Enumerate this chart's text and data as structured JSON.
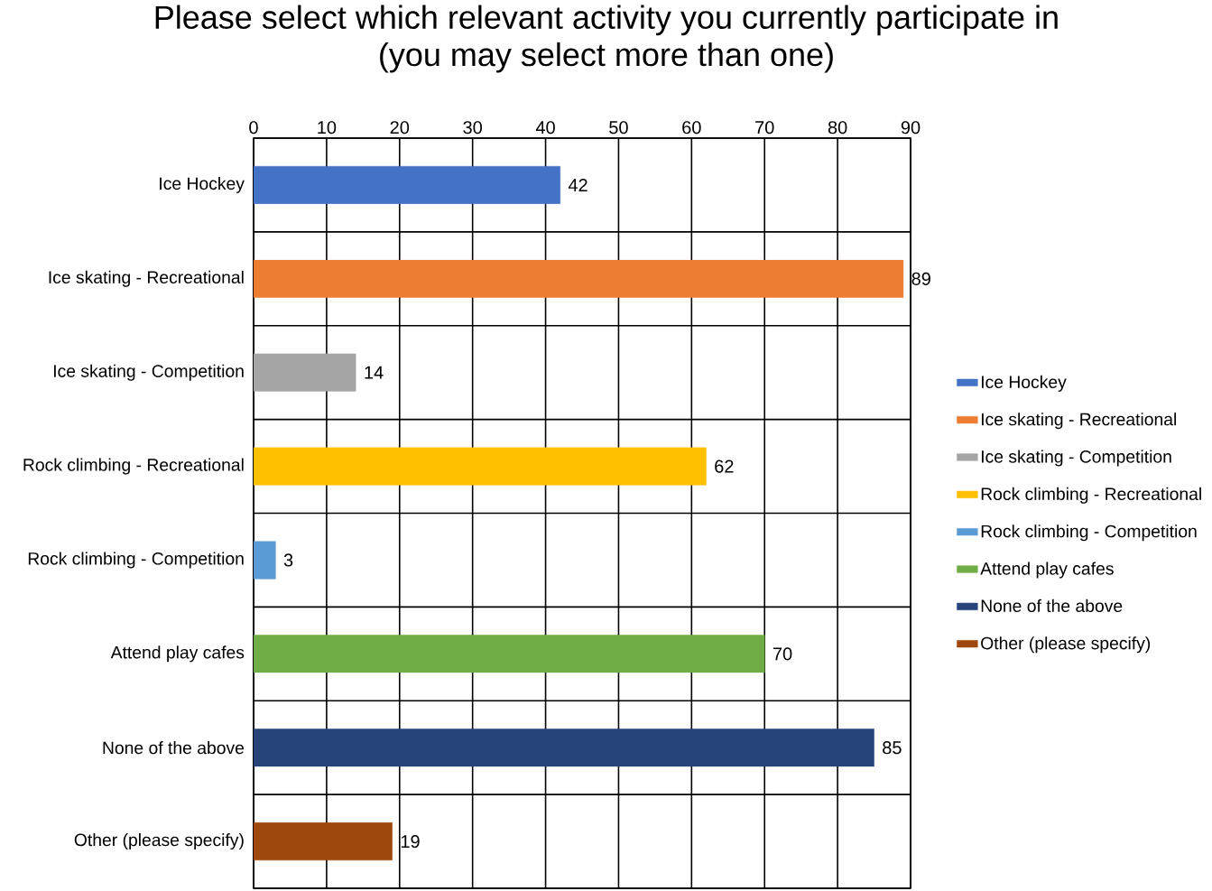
{
  "chart_data": {
    "type": "bar",
    "orientation": "horizontal",
    "title": "Please select which relevant activity you currently participate in\n(you may select more than one)",
    "categories": [
      "Ice Hockey",
      "Ice skating - Recreational",
      "Ice skating - Competition",
      "Rock climbing - Recreational",
      "Rock climbing - Competition",
      "Attend play cafes",
      "None of the above",
      "Other (please specify)"
    ],
    "series": [
      {
        "name": "Ice Hockey",
        "color": "#4472c4",
        "values": [
          42,
          null,
          null,
          null,
          null,
          null,
          null,
          null
        ]
      },
      {
        "name": "Ice skating - Recreational",
        "color": "#ed7d31",
        "values": [
          null,
          89,
          null,
          null,
          null,
          null,
          null,
          null
        ]
      },
      {
        "name": "Ice skating - Competition",
        "color": "#a5a5a5",
        "values": [
          null,
          null,
          14,
          null,
          null,
          null,
          null,
          null
        ]
      },
      {
        "name": "Rock climbing - Recreational",
        "color": "#ffc000",
        "values": [
          null,
          null,
          null,
          62,
          null,
          null,
          null,
          null
        ]
      },
      {
        "name": "Rock climbing - Competition",
        "color": "#5b9bd5",
        "values": [
          null,
          null,
          null,
          null,
          3,
          null,
          null,
          null
        ]
      },
      {
        "name": "Attend play cafes",
        "color": "#70ad47",
        "values": [
          null,
          null,
          null,
          null,
          null,
          70,
          null,
          null
        ]
      },
      {
        "name": "None of the above",
        "color": "#264478",
        "values": [
          null,
          null,
          null,
          null,
          null,
          null,
          85,
          null
        ]
      },
      {
        "name": "Other (please specify)",
        "color": "#9e480e",
        "values": [
          null,
          null,
          null,
          null,
          null,
          null,
          null,
          19
        ]
      }
    ],
    "xlim": [
      0,
      90
    ],
    "xticks": [
      0,
      10,
      20,
      30,
      40,
      50,
      60,
      70,
      80,
      90
    ],
    "grid": true,
    "legend": "right",
    "data_labels": true
  }
}
